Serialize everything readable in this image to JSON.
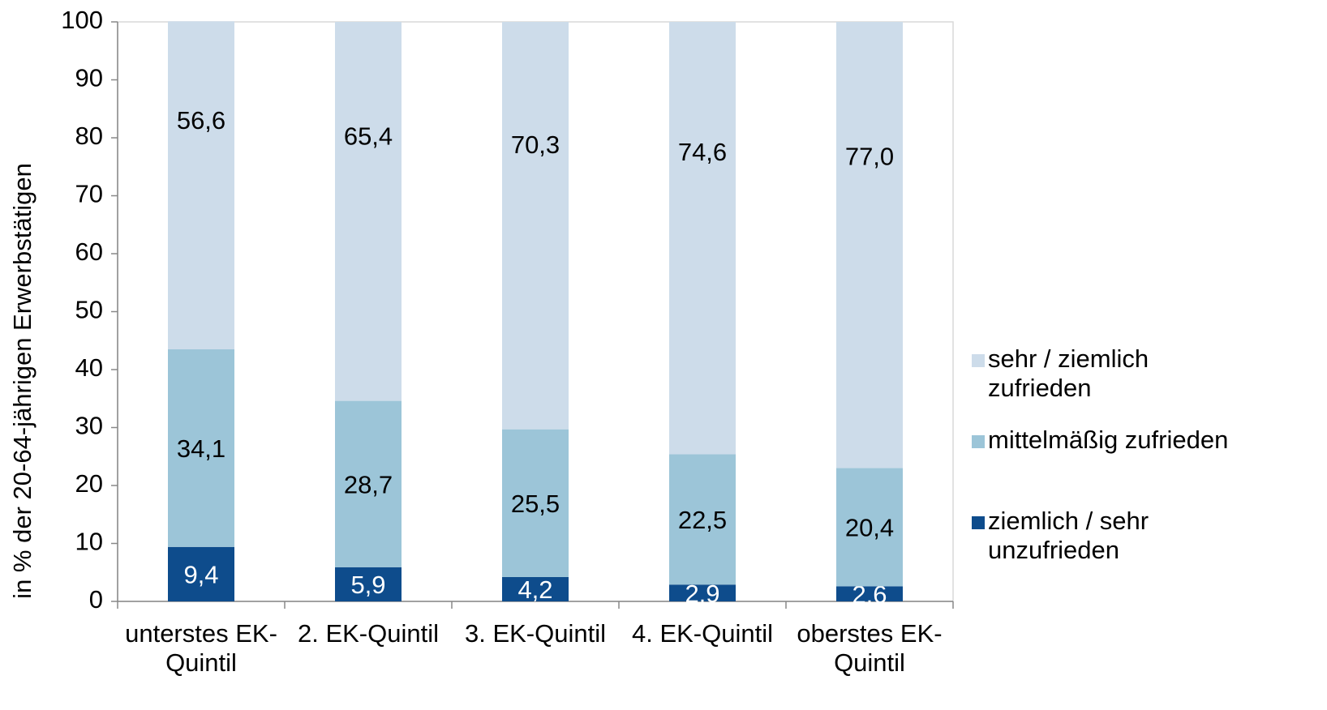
{
  "chart_data": {
    "type": "stacked_bar",
    "y_label": "in % der 20-64-jährigen Erwerbstätigen",
    "categories": [
      "unterstes EK-Quintil",
      "2. EK-Quintil",
      "3. EK-Quintil",
      "4. EK-Quintil",
      "oberstes EK-Quintil"
    ],
    "series": [
      {
        "name": "ziemlich / sehr unzufrieden",
        "color": "#0e4c8c",
        "label_color": "#ffffff",
        "values": [
          9.4,
          5.9,
          4.2,
          2.9,
          2.6
        ],
        "value_labels": [
          "9,4",
          "5,9",
          "4,2",
          "2,9",
          "2,6"
        ]
      },
      {
        "name": "mittelmäßig zufrieden",
        "color": "#9cc5d8",
        "label_color": "#000000",
        "values": [
          34.1,
          28.7,
          25.5,
          22.5,
          20.4
        ],
        "value_labels": [
          "34,1",
          "28,7",
          "25,5",
          "22,5",
          "20,4"
        ]
      },
      {
        "name": "sehr / ziemlich zufrieden",
        "color": "#cddcea",
        "label_color": "#000000",
        "values": [
          56.6,
          65.4,
          70.3,
          74.6,
          77.0
        ],
        "value_labels": [
          "56,6",
          "65,4",
          "70,3",
          "74,6",
          "77,0"
        ]
      }
    ],
    "ylim": [
      0,
      100
    ],
    "yticks": [
      0,
      10,
      20,
      30,
      40,
      50,
      60,
      70,
      80,
      90,
      100
    ],
    "legend": "right"
  }
}
